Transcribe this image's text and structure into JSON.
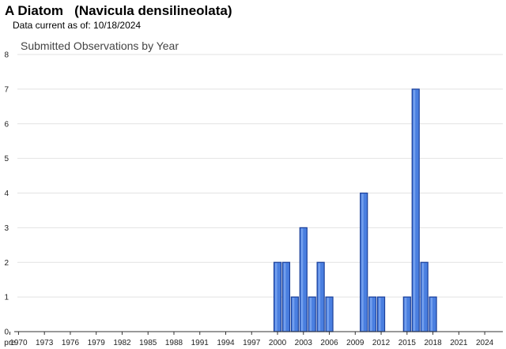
{
  "header": {
    "title": "A Diatom   (Navicula densilineolata)",
    "data_current": "Data current as of: 10/18/2024"
  },
  "chart_data": {
    "type": "bar",
    "title": "Submitted Observations by Year",
    "xlabel": "",
    "ylabel": "",
    "ylim": [
      0,
      8
    ],
    "yticks": [
      0,
      1,
      2,
      3,
      4,
      5,
      6,
      7,
      8
    ],
    "grid": true,
    "bar_color": "#4a7fe0",
    "bar_edge_color": "#1a3f9a",
    "categories": [
      "pre",
      "1970",
      "1971",
      "1972",
      "1973",
      "1974",
      "1975",
      "1976",
      "1977",
      "1978",
      "1979",
      "1980",
      "1981",
      "1982",
      "1983",
      "1984",
      "1985",
      "1986",
      "1987",
      "1988",
      "1989",
      "1990",
      "1991",
      "1992",
      "1993",
      "1994",
      "1995",
      "1996",
      "1997",
      "1998",
      "1999",
      "2000",
      "2001",
      "2002",
      "2003",
      "2004",
      "2005",
      "2006",
      "2007",
      "2008",
      "2009",
      "2010",
      "2011",
      "2012",
      "2013",
      "2014",
      "2015",
      "2016",
      "2017",
      "2018",
      "2019",
      "2020",
      "2021",
      "2022",
      "2023",
      "2024"
    ],
    "values": [
      0,
      0,
      0,
      0,
      0,
      0,
      0,
      0,
      0,
      0,
      0,
      0,
      0,
      0,
      0,
      0,
      0,
      0,
      0,
      0,
      0,
      0,
      0,
      0,
      0,
      0,
      0,
      0,
      0,
      0,
      0,
      2,
      2,
      1,
      3,
      1,
      2,
      1,
      0,
      0,
      0,
      4,
      1,
      1,
      0,
      0,
      1,
      7,
      2,
      1,
      0,
      0,
      0,
      0,
      0,
      0
    ],
    "xtick_labels": [
      "pre",
      "1970",
      "1973",
      "1976",
      "1979",
      "1982",
      "1985",
      "1988",
      "1991",
      "1994",
      "1997",
      "2000",
      "2003",
      "2006",
      "2009",
      "2012",
      "2015",
      "2018",
      "2021",
      "2024"
    ]
  }
}
